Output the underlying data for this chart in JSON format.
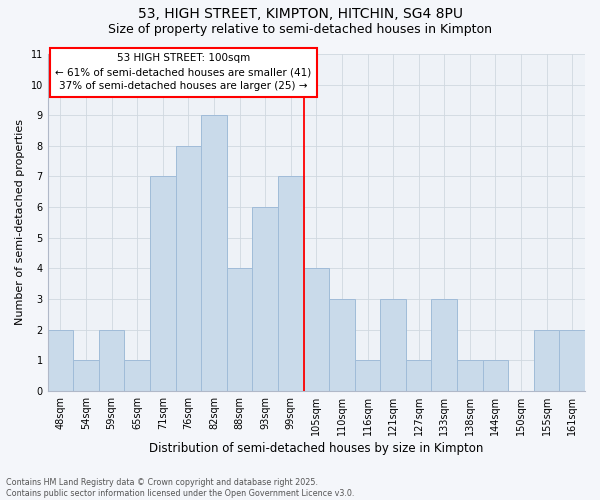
{
  "title1": "53, HIGH STREET, KIMPTON, HITCHIN, SG4 8PU",
  "title2": "Size of property relative to semi-detached houses in Kimpton",
  "xlabel": "Distribution of semi-detached houses by size in Kimpton",
  "ylabel": "Number of semi-detached properties",
  "categories": [
    "48sqm",
    "54sqm",
    "59sqm",
    "65sqm",
    "71sqm",
    "76sqm",
    "82sqm",
    "88sqm",
    "93sqm",
    "99sqm",
    "105sqm",
    "110sqm",
    "116sqm",
    "121sqm",
    "127sqm",
    "133sqm",
    "138sqm",
    "144sqm",
    "150sqm",
    "155sqm",
    "161sqm"
  ],
  "values": [
    2,
    1,
    2,
    1,
    7,
    8,
    9,
    4,
    6,
    7,
    4,
    3,
    1,
    3,
    1,
    3,
    1,
    1,
    0,
    2,
    2
  ],
  "bar_color": "#c9daea",
  "bar_edge_color": "#a0bcd8",
  "subject_line_index": 9.5,
  "subject_label": "53 HIGH STREET: 100sqm",
  "pct_smaller": "61% of semi-detached houses are smaller (41)",
  "pct_larger": "37% of semi-detached houses are larger (25)",
  "ylim": [
    0,
    11
  ],
  "yticks": [
    0,
    1,
    2,
    3,
    4,
    5,
    6,
    7,
    8,
    9,
    10,
    11
  ],
  "grid_color": "#d0d8e0",
  "bg_color": "#eef2f7",
  "fig_bg_color": "#f4f6fa",
  "footnote": "Contains HM Land Registry data © Crown copyright and database right 2025.\nContains public sector information licensed under the Open Government Licence v3.0.",
  "title1_fontsize": 10,
  "title2_fontsize": 9,
  "ylabel_fontsize": 8,
  "xlabel_fontsize": 8.5,
  "annot_fontsize": 7.5,
  "tick_fontsize": 7
}
